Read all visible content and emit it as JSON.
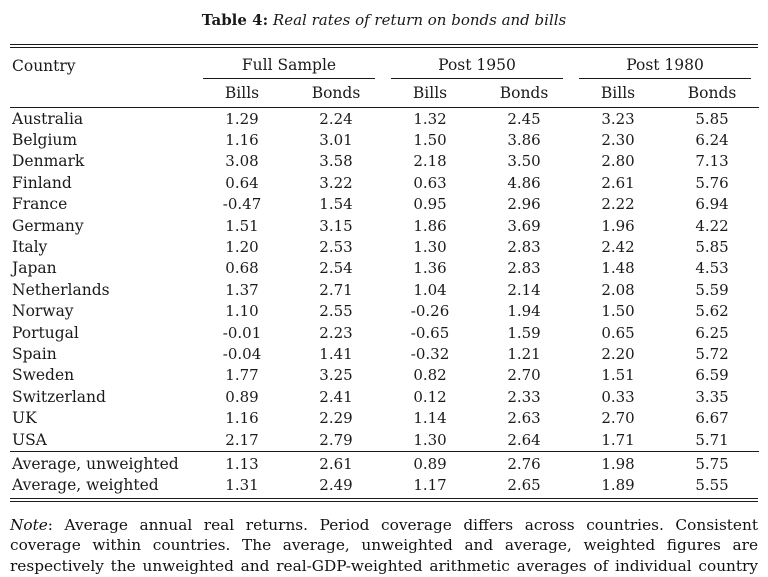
{
  "caption": {
    "label": "Table 4:",
    "text": "Real rates of return on bonds and bills"
  },
  "table": {
    "country_header": "Country",
    "groups": [
      {
        "label": "Full Sample"
      },
      {
        "label": "Post 1950"
      },
      {
        "label": "Post 1980"
      }
    ],
    "sub_headers": [
      "Bills",
      "Bonds",
      "Bills",
      "Bonds",
      "Bills",
      "Bonds"
    ],
    "rows": [
      {
        "country": "Australia",
        "values": [
          "1.29",
          "2.24",
          "1.32",
          "2.45",
          "3.23",
          "5.85"
        ]
      },
      {
        "country": "Belgium",
        "values": [
          "1.16",
          "3.01",
          "1.50",
          "3.86",
          "2.30",
          "6.24"
        ]
      },
      {
        "country": "Denmark",
        "values": [
          "3.08",
          "3.58",
          "2.18",
          "3.50",
          "2.80",
          "7.13"
        ]
      },
      {
        "country": "Finland",
        "values": [
          "0.64",
          "3.22",
          "0.63",
          "4.86",
          "2.61",
          "5.76"
        ]
      },
      {
        "country": "France",
        "values": [
          "-0.47",
          "1.54",
          "0.95",
          "2.96",
          "2.22",
          "6.94"
        ]
      },
      {
        "country": "Germany",
        "values": [
          "1.51",
          "3.15",
          "1.86",
          "3.69",
          "1.96",
          "4.22"
        ]
      },
      {
        "country": "Italy",
        "values": [
          "1.20",
          "2.53",
          "1.30",
          "2.83",
          "2.42",
          "5.85"
        ]
      },
      {
        "country": "Japan",
        "values": [
          "0.68",
          "2.54",
          "1.36",
          "2.83",
          "1.48",
          "4.53"
        ]
      },
      {
        "country": "Netherlands",
        "values": [
          "1.37",
          "2.71",
          "1.04",
          "2.14",
          "2.08",
          "5.59"
        ]
      },
      {
        "country": "Norway",
        "values": [
          "1.10",
          "2.55",
          "-0.26",
          "1.94",
          "1.50",
          "5.62"
        ]
      },
      {
        "country": "Portugal",
        "values": [
          "-0.01",
          "2.23",
          "-0.65",
          "1.59",
          "0.65",
          "6.25"
        ]
      },
      {
        "country": "Spain",
        "values": [
          "-0.04",
          "1.41",
          "-0.32",
          "1.21",
          "2.20",
          "5.72"
        ]
      },
      {
        "country": "Sweden",
        "values": [
          "1.77",
          "3.25",
          "0.82",
          "2.70",
          "1.51",
          "6.59"
        ]
      },
      {
        "country": "Switzerland",
        "values": [
          "0.89",
          "2.41",
          "0.12",
          "2.33",
          "0.33",
          "3.35"
        ]
      },
      {
        "country": "UK",
        "values": [
          "1.16",
          "2.29",
          "1.14",
          "2.63",
          "2.70",
          "6.67"
        ]
      },
      {
        "country": "USA",
        "values": [
          "2.17",
          "2.79",
          "1.30",
          "2.64",
          "1.71",
          "5.71"
        ]
      }
    ],
    "summary_rows": [
      {
        "country": "Average, unweighted",
        "values": [
          "1.13",
          "2.61",
          "0.89",
          "2.76",
          "1.98",
          "5.75"
        ]
      },
      {
        "country": "Average, weighted",
        "values": [
          "1.31",
          "2.49",
          "1.17",
          "2.65",
          "1.89",
          "5.55"
        ]
      }
    ]
  },
  "note": {
    "label": "Note",
    "text": ": Average annual real returns.  Period coverage differs across countries.  Consistent coverage within countries.  The average, unweighted and average, weighted figures are respectively the unweighted and real-GDP-weighted arithmetic averages of individual country returns."
  }
}
